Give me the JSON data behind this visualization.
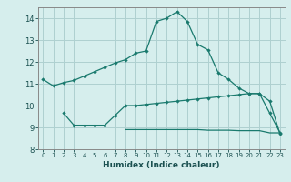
{
  "line1_x": [
    0,
    1,
    2,
    3,
    4,
    5,
    6,
    7,
    8,
    9,
    10,
    11,
    12,
    13,
    14,
    15,
    16,
    17,
    18,
    19,
    20,
    21,
    22,
    23
  ],
  "line1_y": [
    11.2,
    10.9,
    11.05,
    11.15,
    11.35,
    11.55,
    11.75,
    11.95,
    12.1,
    12.4,
    12.5,
    13.85,
    14.0,
    14.3,
    13.85,
    12.8,
    12.55,
    11.5,
    11.2,
    10.8,
    10.55,
    10.55,
    10.2,
    8.7
  ],
  "line2_x": [
    2,
    3,
    4,
    5,
    6,
    7,
    8,
    9,
    10,
    11,
    12,
    13,
    14,
    15,
    16,
    17,
    18,
    19,
    20,
    21,
    22,
    23
  ],
  "line2_y": [
    9.65,
    9.1,
    9.1,
    9.1,
    9.1,
    9.55,
    10.0,
    10.0,
    10.05,
    10.1,
    10.15,
    10.2,
    10.25,
    10.3,
    10.35,
    10.4,
    10.45,
    10.5,
    10.55,
    10.55,
    9.65,
    8.75
  ],
  "line3_x": [
    8,
    9,
    10,
    11,
    12,
    13,
    14,
    15,
    16,
    17,
    18,
    19,
    20,
    21,
    22,
    23
  ],
  "line3_y": [
    8.9,
    8.9,
    8.9,
    8.9,
    8.9,
    8.9,
    8.9,
    8.9,
    8.87,
    8.87,
    8.87,
    8.85,
    8.85,
    8.85,
    8.75,
    8.75
  ],
  "line_color": "#1a7a6e",
  "bg_color": "#d6eeed",
  "grid_color": "#aed0d0",
  "xlabel": "Humidex (Indice chaleur)",
  "ylim": [
    8.0,
    14.5
  ],
  "xlim": [
    -0.5,
    23.5
  ],
  "yticks": [
    8,
    9,
    10,
    11,
    12,
    13,
    14
  ],
  "xticks": [
    0,
    1,
    2,
    3,
    4,
    5,
    6,
    7,
    8,
    9,
    10,
    11,
    12,
    13,
    14,
    15,
    16,
    17,
    18,
    19,
    20,
    21,
    22,
    23
  ],
  "marker": "D",
  "markersize": 2.2,
  "linewidth": 0.9
}
